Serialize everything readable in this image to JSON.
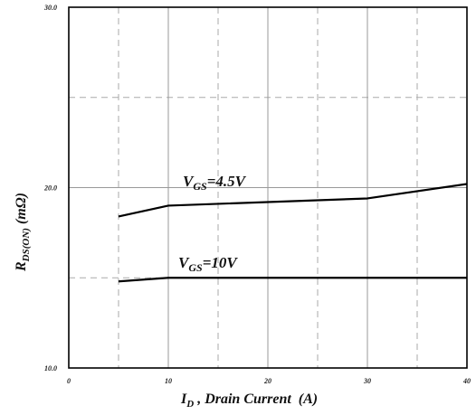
{
  "chart_data": {
    "type": "line",
    "xlabel": {
      "main": "I",
      "sub": "D",
      "rest": " , Drain Current  (A)"
    },
    "ylabel": {
      "main": "R",
      "sub": "DS(ON)",
      "rest": " (mΩ)"
    },
    "xlim": [
      0,
      40
    ],
    "ylim": [
      10,
      30
    ],
    "x_major_ticks": [
      0,
      10,
      20,
      30,
      40
    ],
    "x_tick_labels": [
      "0",
      "10",
      "20",
      "30",
      "40"
    ],
    "x_minor_ticks": [
      5,
      15,
      25,
      35
    ],
    "y_major_ticks": [
      10,
      20,
      30
    ],
    "y_tick_labels": [
      "10.0",
      "20.0",
      "30.0"
    ],
    "y_minor_ticks": [
      15,
      25
    ],
    "grid": true,
    "series": [
      {
        "label": {
          "main": "V",
          "sub": "GS",
          "rest": "=4.5V"
        },
        "x": [
          5,
          10,
          30,
          40
        ],
        "y": [
          18.4,
          19.0,
          19.4,
          20.2
        ]
      },
      {
        "label": {
          "main": "V",
          "sub": "GS",
          "rest": "=10V"
        },
        "x": [
          5,
          10,
          20,
          30,
          40
        ],
        "y": [
          14.8,
          15.0,
          15.0,
          15.0,
          15.0
        ]
      }
    ]
  }
}
